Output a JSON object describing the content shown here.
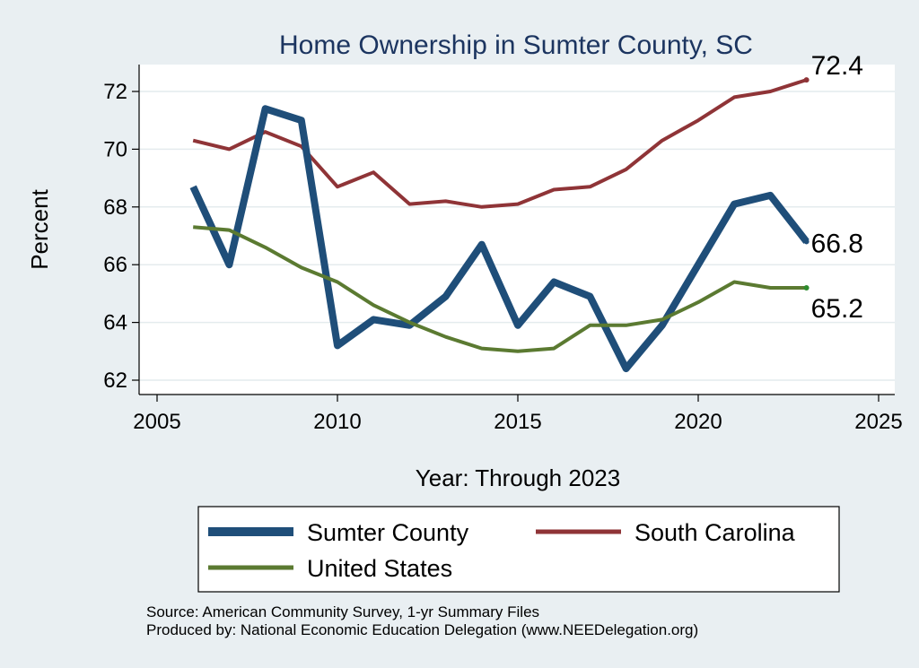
{
  "chart_data": {
    "type": "line",
    "title": "Home Ownership in Sumter County, SC",
    "xlabel": "Year: Through 2023",
    "ylabel": "Percent",
    "xlim": [
      2005,
      2025
    ],
    "ylim": [
      62,
      73
    ],
    "x_ticks": [
      2005,
      2010,
      2015,
      2020,
      2025
    ],
    "y_ticks": [
      62,
      64,
      66,
      68,
      70,
      72
    ],
    "grid": "horizontal",
    "legend_position": "bottom",
    "x": [
      2006,
      2007,
      2008,
      2009,
      2010,
      2011,
      2012,
      2013,
      2014,
      2015,
      2016,
      2017,
      2018,
      2019,
      2020,
      2021,
      2022,
      2023
    ],
    "series": [
      {
        "name": "Sumter County",
        "color": "#1f4e79",
        "values": [
          68.7,
          66.0,
          71.4,
          71.0,
          63.2,
          64.1,
          63.9,
          64.9,
          66.7,
          63.9,
          65.4,
          64.9,
          62.4,
          63.9,
          66.0,
          68.1,
          68.4,
          66.8
        ],
        "end_label": "66.8"
      },
      {
        "name": "South Carolina",
        "color": "#8f3437",
        "values": [
          70.3,
          70.0,
          70.6,
          70.1,
          68.7,
          69.2,
          68.1,
          68.2,
          68.0,
          68.1,
          68.6,
          68.7,
          69.3,
          70.3,
          71.0,
          71.8,
          72.0,
          72.4
        ],
        "end_label": "72.4"
      },
      {
        "name": "United States",
        "color": "#5b7a31",
        "values": [
          67.3,
          67.2,
          66.6,
          65.9,
          65.4,
          64.6,
          64.0,
          63.5,
          63.1,
          63.0,
          63.1,
          63.9,
          63.9,
          64.1,
          64.7,
          65.4,
          65.2,
          65.2
        ],
        "end_label": "65.2"
      }
    ]
  },
  "footer": {
    "source": "Source: American Community Survey, 1-yr Summary Files",
    "produced": "Produced by: National Economic Education Delegation (www.NEEDelegation.org)"
  }
}
